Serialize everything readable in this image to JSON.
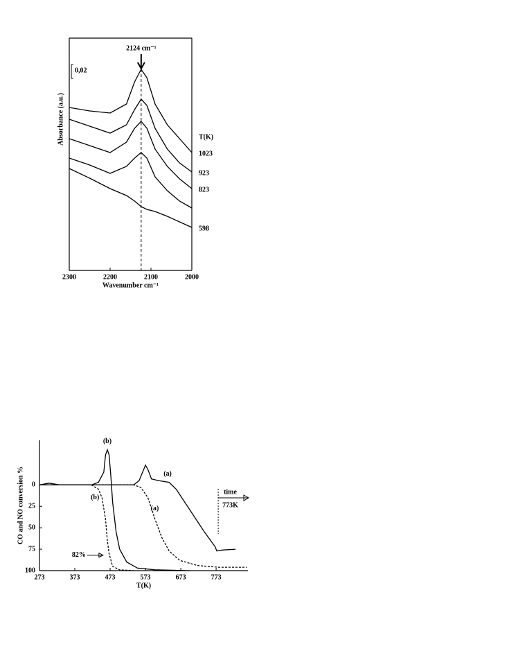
{
  "chart_data": [
    {
      "type": "line",
      "x_label": "Wavenumber cm⁻¹",
      "y_label": "Absorbance (a.u.)",
      "legend_title": "T(K)",
      "annotation": {
        "text": "2124 cm⁻¹",
        "x": 2124
      },
      "scale_bar": {
        "value": 0.02,
        "label": "0,02"
      },
      "frame": "box",
      "x": [
        2300,
        2250,
        2200,
        2160,
        2140,
        2124,
        2110,
        2090,
        2060,
        2030,
        2000
      ],
      "xlim": [
        2300,
        2000
      ],
      "xticks": [
        2300,
        2200,
        2100,
        2000
      ],
      "ylim": [
        0,
        0.335
      ],
      "series": [
        {
          "name": "1023",
          "color": "#000000",
          "values": [
            0.235,
            0.23,
            0.227,
            0.24,
            0.272,
            0.29,
            0.278,
            0.24,
            0.21,
            0.19,
            0.17
          ]
        },
        {
          "name": "923",
          "color": "#000000",
          "values": [
            0.218,
            0.208,
            0.198,
            0.21,
            0.232,
            0.247,
            0.238,
            0.205,
            0.175,
            0.155,
            0.142
          ]
        },
        {
          "name": "823",
          "color": "#000000",
          "values": [
            0.19,
            0.18,
            0.17,
            0.185,
            0.205,
            0.215,
            0.205,
            0.175,
            0.15,
            0.132,
            0.118
          ]
        },
        {
          "name": null,
          "color": "#000000",
          "values": [
            0.162,
            0.152,
            0.14,
            0.15,
            0.162,
            0.17,
            0.162,
            0.135,
            0.115,
            0.1,
            0.09
          ]
        },
        {
          "name": "598",
          "color": "#000000",
          "values": [
            0.147,
            0.133,
            0.118,
            0.108,
            0.1,
            0.092,
            0.088,
            0.085,
            0.078,
            0.07,
            0.062
          ]
        }
      ]
    },
    {
      "type": "line",
      "x_label": "T(K)",
      "y_label": "CO and NO conversion %",
      "annotation": {
        "text": "82%",
        "x": 455,
        "y": 82
      },
      "time_marker": {
        "label": "time",
        "at_label": "773K"
      },
      "frame": "axes",
      "xlim": [
        273,
        863
      ],
      "xticks": [
        273,
        373,
        473,
        573,
        673,
        773
      ],
      "ylim": [
        100,
        -52
      ],
      "yticks": [
        0,
        25,
        50,
        75,
        100
      ],
      "series": [
        {
          "name": "(b)",
          "color": "#000000",
          "dash": false,
          "x": [
            273,
            300,
            330,
            420,
            440,
            455,
            460,
            465,
            470,
            475,
            480,
            490,
            500,
            520,
            550,
            600,
            700
          ],
          "values": [
            0,
            -2,
            0,
            0,
            -3,
            -15,
            -35,
            -41,
            -35,
            -10,
            20,
            55,
            75,
            90,
            97,
            99,
            100
          ]
        },
        {
          "name": "(a)",
          "color": "#000000",
          "dash": false,
          "x": [
            273,
            540,
            555,
            565,
            573,
            580,
            590,
            610,
            640,
            660,
            700,
            740,
            770,
            775,
            790,
            828
          ],
          "values": [
            0,
            0,
            -5,
            -15,
            -23,
            -18,
            -7,
            -5,
            -3,
            5,
            30,
            55,
            72,
            77,
            76,
            75
          ]
        },
        {
          "name": "(b)",
          "color": "#000000",
          "dash": true,
          "x": [
            273,
            420,
            440,
            450,
            460,
            465,
            470,
            480,
            500,
            540
          ],
          "values": [
            0,
            0,
            5,
            15,
            40,
            65,
            80,
            95,
            99,
            100
          ]
        },
        {
          "name": "(a)",
          "color": "#000000",
          "dash": true,
          "x": [
            273,
            540,
            560,
            580,
            600,
            620,
            640,
            670,
            720,
            780,
            860
          ],
          "values": [
            0,
            0,
            3,
            15,
            40,
            62,
            77,
            88,
            94,
            96,
            96
          ]
        }
      ]
    }
  ]
}
